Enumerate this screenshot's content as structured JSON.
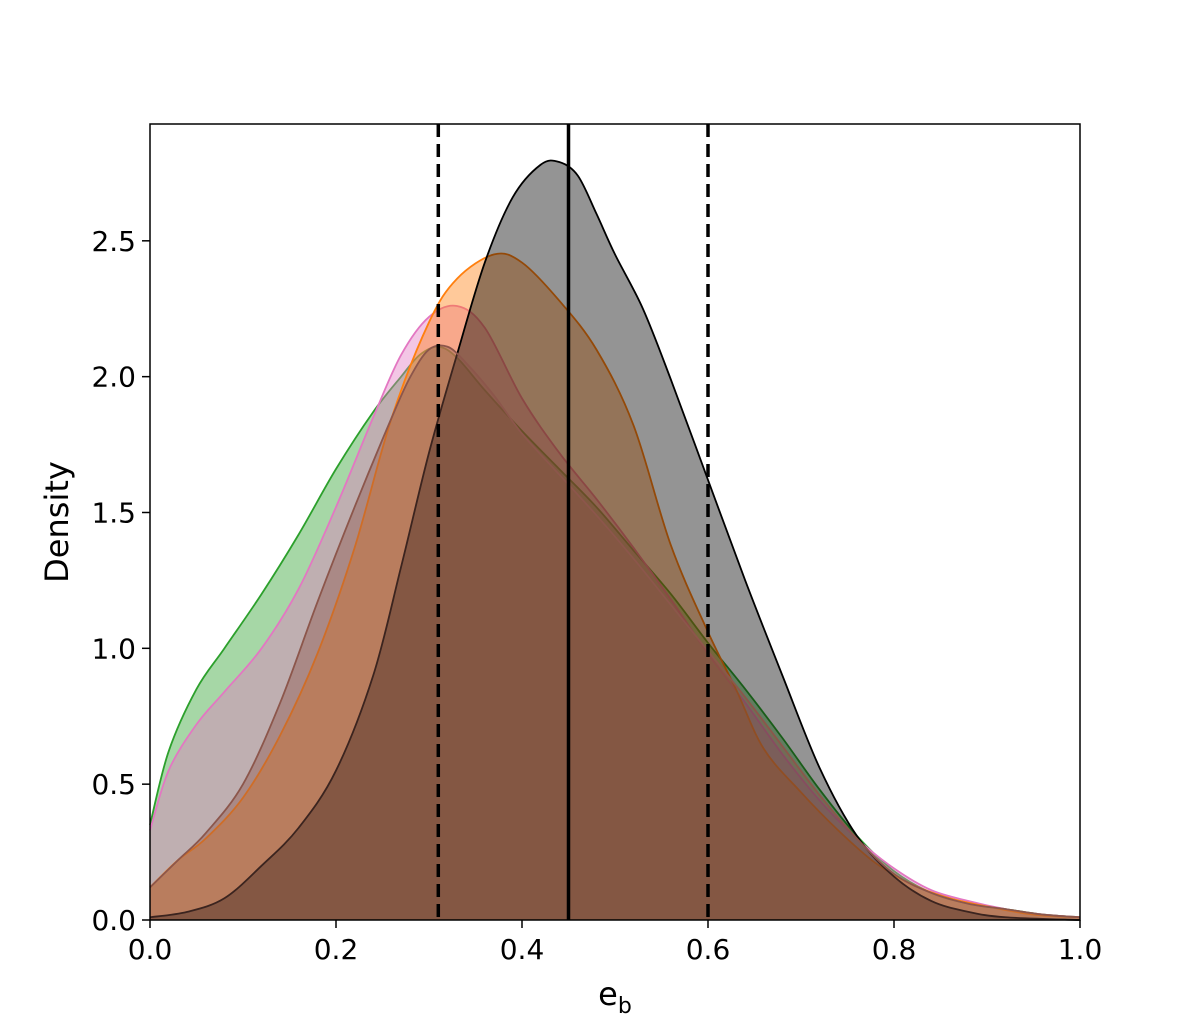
{
  "chart_data": {
    "type": "area",
    "xlabel_main": "e",
    "xlabel_sub": "b",
    "ylabel": "Density",
    "xlim": [
      0.0,
      1.0
    ],
    "ylim": [
      0.0,
      2.93
    ],
    "x_ticks": [
      "0.0",
      "0.2",
      "0.4",
      "0.6",
      "0.8",
      "1.0"
    ],
    "y_ticks": [
      "0.0",
      "0.5",
      "1.0",
      "1.5",
      "2.0",
      "2.5"
    ],
    "x_tick_values": [
      0.0,
      0.2,
      0.4,
      0.6,
      0.8,
      1.0
    ],
    "y_tick_values": [
      0.0,
      0.5,
      1.0,
      1.5,
      2.0,
      2.5
    ],
    "vertical_lines": [
      {
        "x": 0.31,
        "style": "dashed"
      },
      {
        "x": 0.45,
        "style": "solid"
      },
      {
        "x": 0.6,
        "style": "dashed"
      }
    ],
    "series": [
      {
        "color": "#2ca02c",
        "x": [
          0.0,
          0.02,
          0.05,
          0.08,
          0.12,
          0.16,
          0.2,
          0.24,
          0.27,
          0.29,
          0.31,
          0.33,
          0.36,
          0.4,
          0.44,
          0.48,
          0.52,
          0.56,
          0.6,
          0.64,
          0.68,
          0.72,
          0.76,
          0.8,
          0.84,
          0.88,
          0.92,
          0.96,
          1.0
        ],
        "y": [
          0.35,
          0.62,
          0.85,
          1.0,
          1.2,
          1.42,
          1.66,
          1.87,
          2.0,
          2.08,
          2.11,
          2.07,
          1.95,
          1.8,
          1.66,
          1.52,
          1.36,
          1.2,
          1.02,
          0.85,
          0.67,
          0.48,
          0.31,
          0.18,
          0.1,
          0.06,
          0.04,
          0.02,
          0.01
        ]
      },
      {
        "color": "#e377c2",
        "x": [
          0.0,
          0.02,
          0.05,
          0.08,
          0.12,
          0.16,
          0.2,
          0.24,
          0.27,
          0.3,
          0.33,
          0.36,
          0.4,
          0.44,
          0.48,
          0.52,
          0.56,
          0.6,
          0.64,
          0.68,
          0.72,
          0.76,
          0.8,
          0.84,
          0.88,
          0.92,
          0.96,
          1.0
        ],
        "y": [
          0.33,
          0.55,
          0.72,
          0.84,
          1.0,
          1.22,
          1.52,
          1.85,
          2.08,
          2.22,
          2.26,
          2.18,
          1.92,
          1.72,
          1.55,
          1.37,
          1.18,
          0.98,
          0.8,
          0.61,
          0.44,
          0.3,
          0.19,
          0.11,
          0.07,
          0.04,
          0.02,
          0.01
        ]
      },
      {
        "color": "#ff7f0e",
        "x": [
          0.0,
          0.03,
          0.06,
          0.1,
          0.14,
          0.18,
          0.22,
          0.26,
          0.3,
          0.33,
          0.37,
          0.4,
          0.44,
          0.48,
          0.52,
          0.56,
          0.6,
          0.63,
          0.66,
          0.7,
          0.74,
          0.78,
          0.82,
          0.86,
          0.9,
          0.95,
          1.0
        ],
        "y": [
          0.12,
          0.22,
          0.3,
          0.45,
          0.68,
          0.98,
          1.37,
          1.85,
          2.2,
          2.36,
          2.45,
          2.42,
          2.28,
          2.1,
          1.82,
          1.38,
          1.06,
          0.85,
          0.63,
          0.47,
          0.33,
          0.21,
          0.13,
          0.08,
          0.05,
          0.02,
          0.01
        ]
      },
      {
        "color": "#000000",
        "x": [
          0.0,
          0.04,
          0.08,
          0.12,
          0.16,
          0.2,
          0.24,
          0.27,
          0.3,
          0.33,
          0.36,
          0.39,
          0.42,
          0.44,
          0.46,
          0.48,
          0.5,
          0.53,
          0.56,
          0.6,
          0.64,
          0.68,
          0.72,
          0.76,
          0.8,
          0.84,
          0.88,
          0.92,
          1.0
        ],
        "y": [
          0.01,
          0.03,
          0.08,
          0.2,
          0.34,
          0.55,
          0.9,
          1.3,
          1.72,
          2.08,
          2.42,
          2.66,
          2.78,
          2.79,
          2.74,
          2.6,
          2.45,
          2.25,
          1.99,
          1.62,
          1.25,
          0.9,
          0.56,
          0.31,
          0.16,
          0.07,
          0.03,
          0.01,
          0.0
        ]
      },
      {
        "color": "#8c564b",
        "x": [
          0.0,
          0.03,
          0.06,
          0.1,
          0.14,
          0.18,
          0.22,
          0.26,
          0.28,
          0.3,
          0.32,
          0.34,
          0.37,
          0.4,
          0.44,
          0.48,
          0.52,
          0.56,
          0.6,
          0.64,
          0.68,
          0.72,
          0.76,
          0.8,
          0.84,
          0.88,
          0.92,
          0.96,
          1.0
        ],
        "y": [
          0.12,
          0.22,
          0.32,
          0.5,
          0.8,
          1.17,
          1.52,
          1.85,
          2.0,
          2.1,
          2.11,
          2.05,
          1.93,
          1.79,
          1.64,
          1.49,
          1.33,
          1.16,
          0.99,
          0.82,
          0.64,
          0.46,
          0.3,
          0.17,
          0.1,
          0.06,
          0.04,
          0.02,
          0.01
        ]
      }
    ]
  }
}
